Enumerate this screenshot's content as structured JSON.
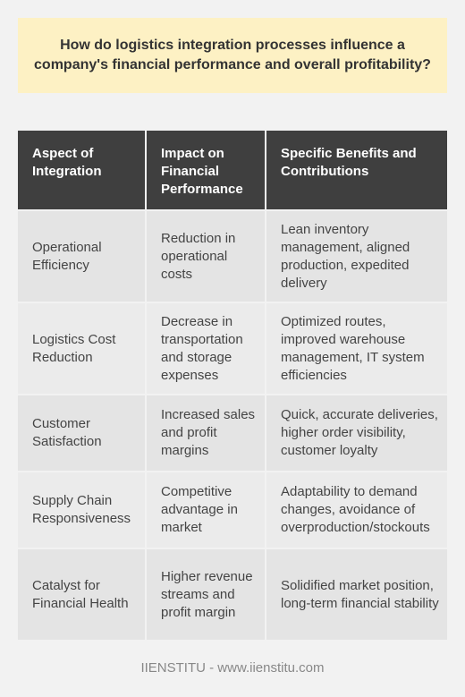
{
  "question": "How do logistics integration processes influence a company's financial performance and overall profitability?",
  "table": {
    "headers": [
      "Aspect of Integration",
      "Impact on Financial Performance",
      "Specific Benefits and Contributions"
    ],
    "rows": [
      [
        "Operational Efficiency",
        "Reduction in operational costs",
        "Lean inventory management, aligned production, expedited delivery"
      ],
      [
        "Logistics Cost Reduction",
        "Decrease in transportation and storage expenses",
        "Optimized routes, improved warehouse management, IT system efficiencies"
      ],
      [
        "Customer Satisfaction",
        "Increased sales and profit margins",
        "Quick, accurate deliveries, higher order visibility, customer loyalty"
      ],
      [
        "Supply Chain Responsiveness",
        "Competitive advantage in market",
        "Adaptability to demand changes, avoidance of overproduction/stockouts"
      ],
      [
        "Catalyst for Financial Health",
        "Higher revenue streams and profit margin",
        "Solidified market position, long-term financial stability"
      ]
    ]
  },
  "footer": "IIENSTITU - www.iienstitu.com",
  "colors": {
    "background": "#f2f2f2",
    "question_box": "#fdf1c4",
    "header_row": "#3f3f3f",
    "row_odd": "#e4e4e4",
    "row_even": "#ebebeb"
  }
}
